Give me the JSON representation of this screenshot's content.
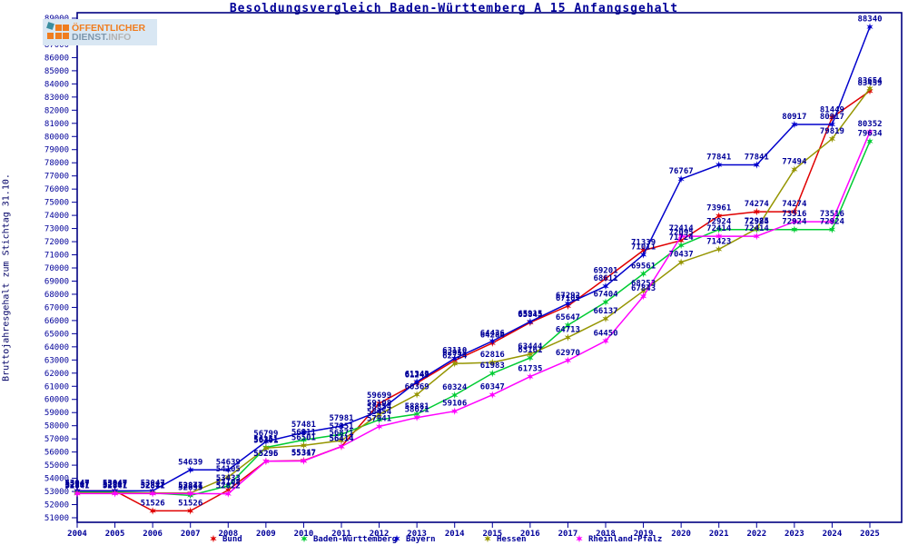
{
  "logo": {
    "line1": "ÖFFENTLICHER",
    "line2_a": "DIENST.",
    "line2_b": "INFO"
  },
  "chart_data": {
    "type": "line",
    "title": "Besoldungsvergleich Baden-Württemberg A 15 Anfangsgehalt",
    "ylabel": "Bruttojahresgehalt zum Stichtag 31.10.",
    "x": [
      2004,
      2005,
      2006,
      2007,
      2008,
      2009,
      2010,
      2011,
      2012,
      2013,
      2014,
      2015,
      2016,
      2017,
      2018,
      2019,
      2020,
      2021,
      2022,
      2023,
      2024,
      2025
    ],
    "ylim": [
      51000,
      89000
    ],
    "ytick_step": 1000,
    "grid": false,
    "legend_position": "bottom",
    "label_color": "#000099",
    "axis_color": "#000099",
    "series": [
      {
        "name": "Bund",
        "color": "#e00000",
        "values": [
          53047,
          53047,
          51526,
          51526,
          53108,
          55295,
          55347,
          56414,
          59699,
          61249,
          62958,
          64284,
          65845,
          67102,
          69201,
          71339,
          72095,
          73961,
          74274,
          74274,
          81449,
          83459
        ]
      },
      {
        "name": "Baden-Württemberg",
        "color": "#00cc33",
        "values": [
          52947,
          52947,
          52877,
          52699,
          53433,
          56351,
          56911,
          57351,
          58454,
          58881,
          60324,
          61983,
          63161,
          65647,
          67404,
          69561,
          71724,
          72924,
          72924,
          72924,
          72924,
          79634
        ]
      },
      {
        "name": "Bayern",
        "color": "#0000cc",
        "values": [
          53047,
          53047,
          53047,
          54639,
          54639,
          56799,
          57481,
          57981,
          59108,
          61343,
          63110,
          64436,
          65915,
          67292,
          68611,
          71011,
          76767,
          77841,
          77841,
          80917,
          80917,
          88340
        ]
      },
      {
        "name": "Hessen",
        "color": "#959500",
        "values": [
          52877,
          52877,
          52877,
          52877,
          54105,
          56301,
          56501,
          56871,
          58854,
          60369,
          62724,
          62816,
          63444,
          64713,
          66137,
          68253,
          70437,
          71423,
          72985,
          77494,
          79819,
          83654
        ]
      },
      {
        "name": "Rheinland-Pfalz",
        "color": "#ff00ff",
        "values": [
          52841,
          52841,
          52841,
          52841,
          52822,
          55296,
          55317,
          56414,
          57941,
          58621,
          59106,
          60347,
          61735,
          62970,
          64450,
          67843,
          72414,
          72414,
          72414,
          73516,
          73516,
          80352
        ]
      }
    ]
  }
}
